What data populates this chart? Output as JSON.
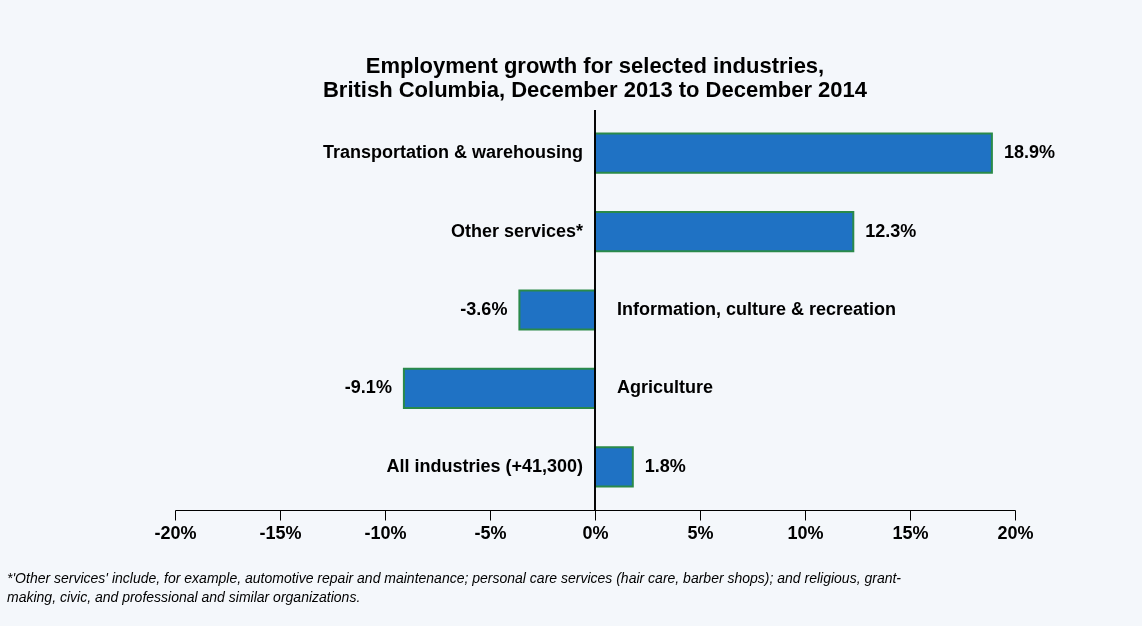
{
  "chart_data": {
    "type": "bar",
    "orientation": "horizontal",
    "title": [
      "Employment growth for selected industries,",
      "British Columbia, December 2013 to December 2014"
    ],
    "categories": [
      "Transportation & warehousing",
      "Other services*",
      "Information, culture & recreation",
      "Agriculture",
      "All industries (+41,300)"
    ],
    "values": [
      18.9,
      12.3,
      -3.6,
      -9.1,
      1.8
    ],
    "value_labels": [
      "18.9%",
      "12.3%",
      "-3.6%",
      "-9.1%",
      "1.8%"
    ],
    "color": "#1f72c4",
    "xlim": [
      -20,
      20
    ],
    "xticks": [
      {
        "value": -20,
        "label": "-20%"
      },
      {
        "value": -15,
        "label": "-15%"
      },
      {
        "value": -10,
        "label": "-10%"
      },
      {
        "value": -5,
        "label": "-5%"
      },
      {
        "value": 0,
        "label": "0%"
      },
      {
        "value": 5,
        "label": "5%"
      },
      {
        "value": 10,
        "label": "10%"
      },
      {
        "value": 15,
        "label": "15%"
      },
      {
        "value": 20,
        "label": "20%"
      }
    ],
    "grid": false,
    "annotations": [
      "*'Other services' include, for example, automotive repair and maintenance; personal care services (hair care, barber shops); and religious, grant-making, civic, and professional and similar organizations."
    ]
  }
}
